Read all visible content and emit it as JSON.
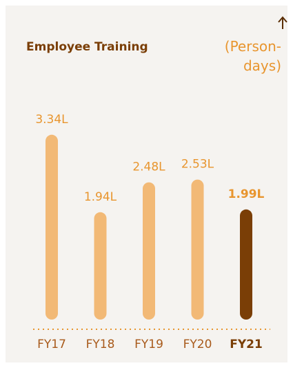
{
  "chart_data": {
    "type": "bar",
    "title": "Employee Training",
    "unit": "(Person-days)",
    "categories": [
      "FY17",
      "FY18",
      "FY19",
      "FY20",
      "FY21"
    ],
    "values": [
      3.34,
      1.94,
      2.48,
      2.53,
      1.99
    ],
    "value_labels": [
      "3.34L",
      "1.94L",
      "2.48L",
      "2.53L",
      "1.99L"
    ],
    "color": "#f2b976",
    "highlight_index": 4,
    "highlight_color": "#7a3e06"
  }
}
